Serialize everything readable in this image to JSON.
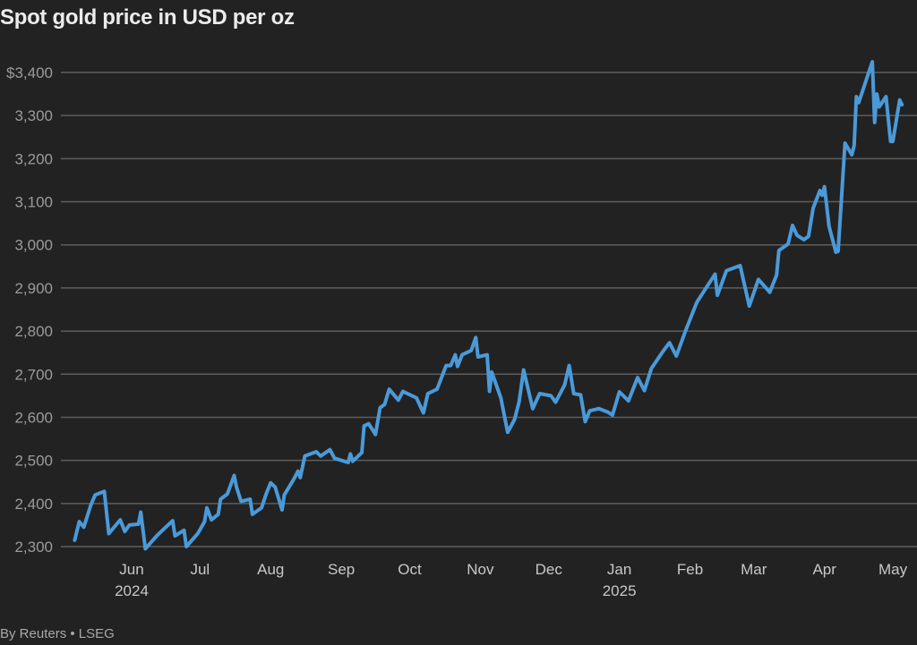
{
  "chart_data": {
    "type": "line",
    "title": "Spot gold price in USD per oz",
    "source": "By Reuters • LSEG",
    "xlabel": "",
    "ylabel": "",
    "ylim": [
      2300,
      3400
    ],
    "yticks": [
      {
        "value": 3400,
        "label": "$3,400"
      },
      {
        "value": 3300,
        "label": "3,300"
      },
      {
        "value": 3200,
        "label": "3,200"
      },
      {
        "value": 3100,
        "label": "3,100"
      },
      {
        "value": 3000,
        "label": "3,000"
      },
      {
        "value": 2900,
        "label": "2,900"
      },
      {
        "value": 2800,
        "label": "2,800"
      },
      {
        "value": 2700,
        "label": "2,700"
      },
      {
        "value": 2600,
        "label": "2,600"
      },
      {
        "value": 2500,
        "label": "2,500"
      },
      {
        "value": 2400,
        "label": "2,400"
      },
      {
        "value": 2300,
        "label": "2,300"
      }
    ],
    "xticks": [
      {
        "date": "2024-06-01",
        "label": "Jun",
        "year": "2024"
      },
      {
        "date": "2024-07-01",
        "label": "Jul"
      },
      {
        "date": "2024-08-01",
        "label": "Aug"
      },
      {
        "date": "2024-09-01",
        "label": "Sep"
      },
      {
        "date": "2024-10-01",
        "label": "Oct"
      },
      {
        "date": "2024-11-01",
        "label": "Nov"
      },
      {
        "date": "2024-12-01",
        "label": "Dec"
      },
      {
        "date": "2025-01-01",
        "label": "Jan",
        "year": "2025"
      },
      {
        "date": "2025-02-01",
        "label": "Feb"
      },
      {
        "date": "2025-03-01",
        "label": "Mar"
      },
      {
        "date": "2025-04-01",
        "label": "Apr"
      },
      {
        "date": "2025-05-01",
        "label": "May"
      }
    ],
    "grid": true,
    "legend": "none",
    "line_color": "#4a9ad9",
    "series": [
      {
        "points": [
          [
            "2024-05-07",
            2315
          ],
          [
            "2024-05-09",
            2358
          ],
          [
            "2024-05-11",
            2345
          ],
          [
            "2024-05-14",
            2395
          ],
          [
            "2024-05-16",
            2420
          ],
          [
            "2024-05-20",
            2428
          ],
          [
            "2024-05-22",
            2330
          ],
          [
            "2024-05-27",
            2362
          ],
          [
            "2024-05-29",
            2335
          ],
          [
            "2024-05-31",
            2350
          ],
          [
            "2024-06-04",
            2352
          ],
          [
            "2024-06-05",
            2380
          ],
          [
            "2024-06-07",
            2295
          ],
          [
            "2024-06-12",
            2325
          ],
          [
            "2024-06-14",
            2335
          ],
          [
            "2024-06-19",
            2360
          ],
          [
            "2024-06-20",
            2325
          ],
          [
            "2024-06-24",
            2338
          ],
          [
            "2024-06-25",
            2300
          ],
          [
            "2024-06-30",
            2330
          ],
          [
            "2024-07-03",
            2358
          ],
          [
            "2024-07-04",
            2390
          ],
          [
            "2024-07-06",
            2362
          ],
          [
            "2024-07-09",
            2375
          ],
          [
            "2024-07-10",
            2410
          ],
          [
            "2024-07-13",
            2422
          ],
          [
            "2024-07-16",
            2465
          ],
          [
            "2024-07-17",
            2438
          ],
          [
            "2024-07-19",
            2405
          ],
          [
            "2024-07-23",
            2410
          ],
          [
            "2024-07-24",
            2375
          ],
          [
            "2024-07-28",
            2390
          ],
          [
            "2024-07-30",
            2422
          ],
          [
            "2024-08-01",
            2448
          ],
          [
            "2024-08-03",
            2438
          ],
          [
            "2024-08-06",
            2385
          ],
          [
            "2024-08-07",
            2420
          ],
          [
            "2024-08-11",
            2455
          ],
          [
            "2024-08-13",
            2475
          ],
          [
            "2024-08-14",
            2460
          ],
          [
            "2024-08-16",
            2510
          ],
          [
            "2024-08-21",
            2520
          ],
          [
            "2024-08-23",
            2510
          ],
          [
            "2024-08-27",
            2525
          ],
          [
            "2024-08-29",
            2505
          ],
          [
            "2024-09-04",
            2495
          ],
          [
            "2024-09-05",
            2515
          ],
          [
            "2024-09-06",
            2498
          ],
          [
            "2024-09-10",
            2518
          ],
          [
            "2024-09-11",
            2580
          ],
          [
            "2024-09-13",
            2585
          ],
          [
            "2024-09-16",
            2560
          ],
          [
            "2024-09-18",
            2622
          ],
          [
            "2024-09-20",
            2630
          ],
          [
            "2024-09-22",
            2665
          ],
          [
            "2024-09-26",
            2640
          ],
          [
            "2024-09-28",
            2660
          ],
          [
            "2024-10-04",
            2645
          ],
          [
            "2024-10-07",
            2610
          ],
          [
            "2024-10-09",
            2655
          ],
          [
            "2024-10-13",
            2665
          ],
          [
            "2024-10-17",
            2720
          ],
          [
            "2024-10-19",
            2720
          ],
          [
            "2024-10-21",
            2745
          ],
          [
            "2024-10-22",
            2718
          ],
          [
            "2024-10-24",
            2745
          ],
          [
            "2024-10-28",
            2755
          ],
          [
            "2024-10-30",
            2785
          ],
          [
            "2024-10-31",
            2740
          ],
          [
            "2024-11-04",
            2745
          ],
          [
            "2024-11-05",
            2660
          ],
          [
            "2024-11-06",
            2705
          ],
          [
            "2024-11-10",
            2645
          ],
          [
            "2024-11-13",
            2565
          ],
          [
            "2024-11-16",
            2595
          ],
          [
            "2024-11-18",
            2635
          ],
          [
            "2024-11-20",
            2710
          ],
          [
            "2024-11-24",
            2620
          ],
          [
            "2024-11-27",
            2655
          ],
          [
            "2024-12-02",
            2650
          ],
          [
            "2024-12-04",
            2635
          ],
          [
            "2024-12-08",
            2675
          ],
          [
            "2024-12-10",
            2720
          ],
          [
            "2024-12-12",
            2655
          ],
          [
            "2024-12-15",
            2652
          ],
          [
            "2024-12-17",
            2590
          ],
          [
            "2024-12-19",
            2615
          ],
          [
            "2024-12-23",
            2620
          ],
          [
            "2024-12-27",
            2612
          ],
          [
            "2024-12-29",
            2605
          ],
          [
            "2025-01-01",
            2659
          ],
          [
            "2025-01-05",
            2638
          ],
          [
            "2025-01-09",
            2692
          ],
          [
            "2025-01-12",
            2662
          ],
          [
            "2025-01-15",
            2713
          ],
          [
            "2025-01-20",
            2752
          ],
          [
            "2025-01-23",
            2773
          ],
          [
            "2025-01-26",
            2742
          ],
          [
            "2025-01-30",
            2800
          ],
          [
            "2025-02-04",
            2867
          ],
          [
            "2025-02-09",
            2908
          ],
          [
            "2025-02-12",
            2932
          ],
          [
            "2025-02-13",
            2883
          ],
          [
            "2025-02-17",
            2940
          ],
          [
            "2025-02-23",
            2952
          ],
          [
            "2025-02-27",
            2858
          ],
          [
            "2025-03-03",
            2920
          ],
          [
            "2025-03-08",
            2890
          ],
          [
            "2025-03-11",
            2930
          ],
          [
            "2025-03-12",
            2987
          ],
          [
            "2025-03-16",
            3002
          ],
          [
            "2025-03-18",
            3045
          ],
          [
            "2025-03-20",
            3022
          ],
          [
            "2025-03-23",
            3012
          ],
          [
            "2025-03-25",
            3020
          ],
          [
            "2025-03-27",
            3085
          ],
          [
            "2025-03-30",
            3126
          ],
          [
            "2025-03-31",
            3115
          ],
          [
            "2025-04-01",
            3135
          ],
          [
            "2025-04-03",
            3043
          ],
          [
            "2025-04-06",
            2983
          ],
          [
            "2025-04-07",
            2985
          ],
          [
            "2025-04-10",
            3236
          ],
          [
            "2025-04-13",
            3209
          ],
          [
            "2025-04-14",
            3230
          ],
          [
            "2025-04-15",
            3344
          ],
          [
            "2025-04-16",
            3330
          ],
          [
            "2025-04-22",
            3425
          ],
          [
            "2025-04-23",
            3284
          ],
          [
            "2025-04-24",
            3350
          ],
          [
            "2025-04-25",
            3320
          ],
          [
            "2025-04-28",
            3344
          ],
          [
            "2025-04-30",
            3240
          ],
          [
            "2025-05-01",
            3240
          ],
          [
            "2025-05-04",
            3336
          ],
          [
            "2025-05-05",
            3325
          ]
        ]
      }
    ]
  }
}
